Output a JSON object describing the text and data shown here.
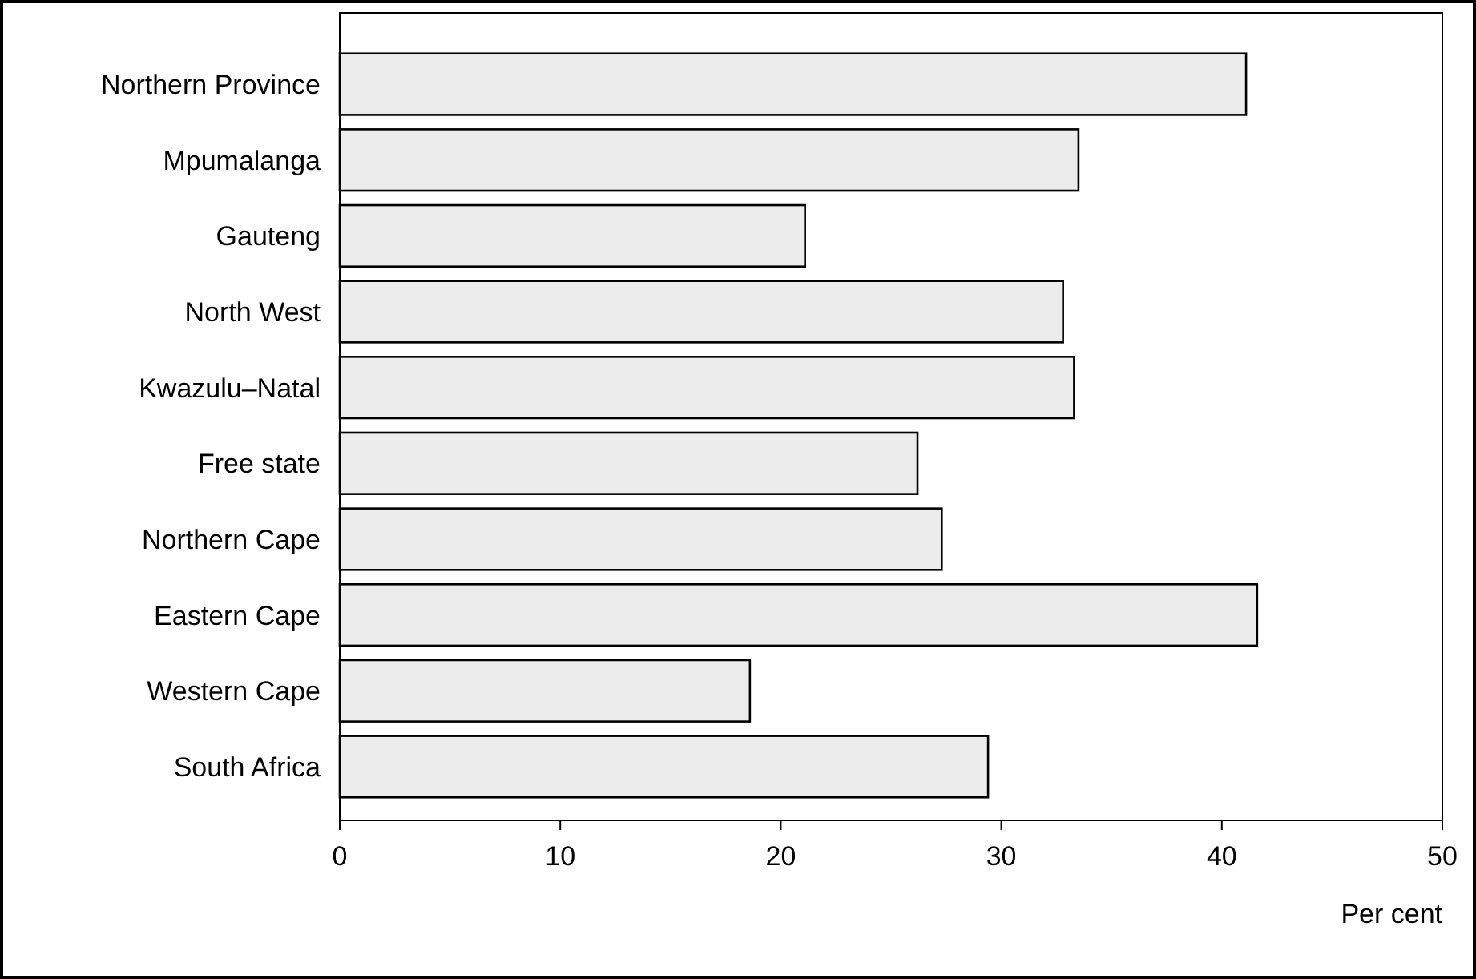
{
  "chart_data": {
    "type": "bar",
    "orientation": "horizontal",
    "xlabel": "Per cent",
    "categories": [
      "Northern Province",
      "Mpumalanga",
      "Gauteng",
      "North West",
      "Kwazulu–Natal",
      "Free state",
      "Northern Cape",
      "Eastern Cape",
      "Western Cape",
      "South Africa"
    ],
    "values": [
      41.1,
      33.5,
      21.1,
      32.8,
      33.3,
      26.2,
      27.3,
      41.6,
      18.6,
      29.4
    ],
    "color": "#ececec",
    "xlim": [
      0,
      50
    ],
    "xticks": [
      0,
      10,
      20,
      30,
      40,
      50
    ],
    "grid": false
  }
}
